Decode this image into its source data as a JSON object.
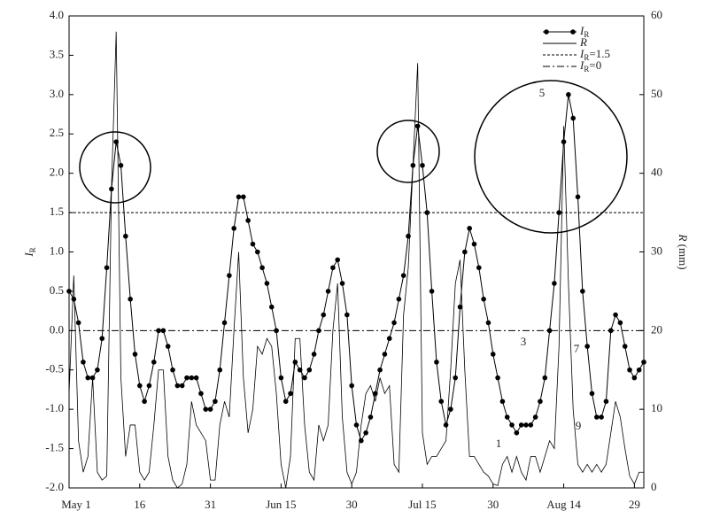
{
  "chart_data": {
    "type": "line",
    "ylabel": "IR",
    "y2label": "R (mm)",
    "x": [
      0,
      1,
      2,
      3,
      4,
      5,
      6,
      7,
      8,
      9,
      10,
      11,
      12,
      13,
      14,
      15,
      16,
      17,
      18,
      19,
      20,
      21,
      22,
      23,
      24,
      25,
      26,
      27,
      28,
      29,
      30,
      31,
      32,
      33,
      34,
      35,
      36,
      37,
      38,
      39,
      40,
      41,
      42,
      43,
      44,
      45,
      46,
      47,
      48,
      49,
      50,
      51,
      52,
      53,
      54,
      55,
      56,
      57,
      58,
      59,
      60,
      61,
      62,
      63,
      64,
      65,
      66,
      67,
      68,
      69,
      70,
      71,
      72,
      73,
      74,
      75,
      76,
      77,
      78,
      79,
      80,
      81,
      82,
      83,
      84,
      85,
      86,
      87,
      88,
      89,
      90,
      91,
      92,
      93,
      94,
      95,
      96,
      97,
      98,
      99,
      100,
      101,
      102,
      103,
      104,
      105,
      106,
      107,
      108,
      109,
      110,
      111,
      112,
      113,
      114,
      115,
      116,
      117,
      118,
      119,
      120,
      121,
      122
    ],
    "xlim": [
      0,
      122
    ],
    "xticks": [
      {
        "value": 0,
        "label": "May 1"
      },
      {
        "value": 15,
        "label": "16"
      },
      {
        "value": 30,
        "label": "31"
      },
      {
        "value": 45,
        "label": "Jun 15"
      },
      {
        "value": 60,
        "label": "30"
      },
      {
        "value": 75,
        "label": "Jul 15"
      },
      {
        "value": 90,
        "label": "30"
      },
      {
        "value": 105,
        "label": "Aug 14"
      },
      {
        "value": 120,
        "label": "29"
      }
    ],
    "ylim": [
      -2,
      4
    ],
    "yticks": [
      {
        "value": -2,
        "label": "-2.0"
      },
      -1.5,
      {
        "value": -1,
        "label": "-1.0"
      },
      -0.5,
      {
        "value": 0,
        "label": "0.0"
      },
      0.5,
      {
        "value": 1,
        "label": "1.0"
      },
      1.5,
      {
        "value": 2,
        "label": "2.0"
      },
      2.5,
      {
        "value": 3,
        "label": "3.0"
      },
      3.5,
      {
        "value": 4,
        "label": "4.0"
      }
    ],
    "y2lim": [
      0,
      60
    ],
    "y2ticks": [
      0,
      10,
      20,
      30,
      40,
      50,
      60
    ],
    "series": [
      {
        "name": "IR",
        "color": "#000000",
        "markers": true,
        "values": [
          0.5,
          0.4,
          0.1,
          -0.4,
          -0.6,
          -0.6,
          -0.5,
          -0.1,
          0.8,
          1.8,
          2.4,
          2.1,
          1.2,
          0.4,
          -0.3,
          -0.7,
          -0.9,
          -0.7,
          -0.4,
          0.0,
          0.0,
          -0.2,
          -0.5,
          -0.7,
          -0.7,
          -0.6,
          -0.6,
          -0.6,
          -0.8,
          -1.0,
          -1.0,
          -0.9,
          -0.5,
          0.1,
          0.7,
          1.3,
          1.7,
          1.7,
          1.4,
          1.1,
          1.0,
          0.8,
          0.6,
          0.3,
          0.0,
          -0.6,
          -0.9,
          -0.8,
          -0.4,
          -0.5,
          -0.6,
          -0.5,
          -0.3,
          0.0,
          0.2,
          0.5,
          0.8,
          0.9,
          0.6,
          0.2,
          -0.7,
          -1.2,
          -1.4,
          -1.3,
          -1.1,
          -0.8,
          -0.5,
          -0.3,
          -0.1,
          0.1,
          0.4,
          0.7,
          1.2,
          2.1,
          2.6,
          2.1,
          1.5,
          0.5,
          -0.4,
          -0.9,
          -1.2,
          -1.0,
          -0.6,
          0.3,
          1.0,
          1.3,
          1.1,
          0.8,
          0.4,
          0.1,
          -0.3,
          -0.6,
          -0.9,
          -1.1,
          -1.2,
          -1.3,
          -1.2,
          -1.2,
          -1.2,
          -1.1,
          -0.9,
          -0.6,
          0.0,
          0.6,
          1.5,
          2.4,
          3.0,
          2.7,
          1.7,
          0.5,
          -0.2,
          -0.8,
          -1.1,
          -1.1,
          -0.9,
          0.0,
          0.2,
          0.1,
          -0.2,
          -0.5,
          -0.6,
          -0.5,
          -0.4
        ]
      },
      {
        "name": "R",
        "color": "#000000",
        "markers": false,
        "axis": "y2",
        "values": [
          12,
          27,
          6,
          2,
          4,
          14,
          2,
          1,
          1.5,
          38,
          58,
          14,
          4,
          8,
          8,
          2,
          1,
          2,
          8,
          15,
          15,
          4,
          1,
          0,
          0.5,
          3,
          11,
          8,
          7,
          6,
          1,
          1,
          8,
          11,
          9,
          20,
          30,
          14,
          7,
          10,
          18,
          17,
          19,
          18,
          12,
          3,
          0,
          4,
          19,
          19,
          8,
          2,
          1,
          8,
          6,
          8,
          20,
          26,
          9,
          2,
          0.5,
          2,
          8,
          12,
          13,
          11,
          14,
          12,
          13,
          3,
          2,
          22,
          28,
          41,
          54,
          7,
          3,
          4,
          4,
          5,
          6,
          15,
          26,
          29,
          15,
          4,
          4,
          3,
          2,
          1.5,
          0.5,
          0.3,
          3,
          4,
          2,
          4,
          2,
          1,
          4,
          4,
          2,
          4,
          6,
          5,
          18,
          46,
          26,
          10,
          3,
          2,
          3,
          2,
          3,
          2,
          3,
          7,
          11,
          9,
          5,
          1.5,
          0.5,
          2,
          2
        ]
      }
    ],
    "hlines": [
      {
        "name": "IR=1.5",
        "value": 1.5,
        "style": "dotted",
        "color": "#000000"
      },
      {
        "name": "IR=0",
        "value": 0,
        "style": "dashdot",
        "color": "#000000"
      }
    ],
    "annotations": [
      "1",
      "3",
      "5",
      "7",
      "9"
    ],
    "legend": "upper right"
  }
}
